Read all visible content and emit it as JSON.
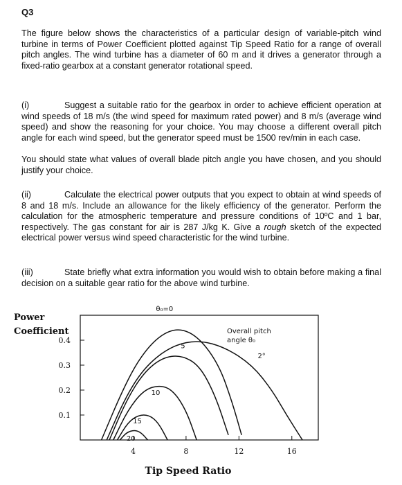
{
  "heading": "Q3",
  "intro": "The figure below shows the characteristics of a particular design of variable-pitch wind turbine in terms of Power Coefficient plotted against Tip Speed Ratio for a range of overall pitch angles. The wind turbine has a diameter of 60 m and it drives a generator through a fixed-ratio gearbox at a constant generator rotational speed.",
  "part_i": {
    "num": "(i)",
    "text": "Suggest a suitable ratio for the gearbox in order to achieve efficient operation at wind speeds of 18 m/s (the wind speed for maximum rated power) and 8 m/s (average wind speed) and show the reasoning for your choice. You may choose a different overall pitch angle for each wind speed, but the generator speed must be 1500 rev/min in each case.",
    "text2": "You should state what values of overall blade pitch angle you have chosen, and you should justify your choice."
  },
  "part_ii": {
    "num": "(ii)",
    "text_a": "Calculate the electrical power outputs that you expect to obtain at wind speeds of 8 and 18 m/s. Include an allowance for the likely efficiency of the generator. Perform the calculation for the atmospheric temperature and pressure conditions of 10ºC and 1 bar, respectively. The gas constant for air is 287 J/kg K. Give a ",
    "text_em": "rough",
    "text_b": " sketch of the expected electrical power versus wind speed characteristic for the wind turbine."
  },
  "part_iii": {
    "num": "(iii)",
    "text": "State briefly what extra information you would wish to obtain before making a final decision on a suitable gear ratio for the above wind turbine."
  },
  "chart_data": {
    "type": "line",
    "ylabel": "Power Coefficient",
    "xlabel": "Tip Speed Ratio",
    "x_ticks": [
      4,
      8,
      12,
      16
    ],
    "y_ticks": [
      0.1,
      0.2,
      0.3,
      0.4
    ],
    "xlim": [
      0,
      18
    ],
    "ylim": [
      0,
      0.5
    ],
    "legend_title_line1": "Overall pitch",
    "legend_title_line2": "angle θ₀",
    "series": [
      {
        "name": "θ₀=0",
        "x": [
          1.6,
          3.2,
          4.5,
          6,
          7.5,
          9,
          10.5,
          11.5,
          12.2
        ],
        "y": [
          0.0,
          0.2,
          0.33,
          0.42,
          0.45,
          0.41,
          0.3,
          0.15,
          0.02
        ]
      },
      {
        "name": "2°",
        "x": [
          2.0,
          3.5,
          5,
          7,
          9,
          11,
          13,
          14.5,
          15.6,
          16.8
        ],
        "y": [
          0.0,
          0.18,
          0.3,
          0.38,
          0.4,
          0.37,
          0.3,
          0.2,
          0.1,
          0.0
        ]
      },
      {
        "name": "5",
        "x": [
          2.2,
          3.5,
          4.8,
          6.2,
          7.6,
          9,
          10.2,
          11.2
        ],
        "y": [
          0.0,
          0.16,
          0.27,
          0.33,
          0.34,
          0.3,
          0.18,
          0.02
        ]
      },
      {
        "name": "10",
        "x": [
          2.5,
          3.6,
          4.8,
          6,
          7,
          8,
          8.8
        ],
        "y": [
          0.0,
          0.12,
          0.2,
          0.22,
          0.2,
          0.12,
          0.0
        ]
      },
      {
        "name": "15",
        "x": [
          2.8,
          3.6,
          4.4,
          5.2,
          5.9,
          6.6
        ],
        "y": [
          0.0,
          0.07,
          0.1,
          0.1,
          0.07,
          0.0
        ]
      },
      {
        "name": "20",
        "x": [
          3.0,
          3.5,
          4.1,
          4.6,
          5.1
        ],
        "y": [
          0.0,
          0.03,
          0.04,
          0.03,
          0.0
        ]
      }
    ]
  }
}
